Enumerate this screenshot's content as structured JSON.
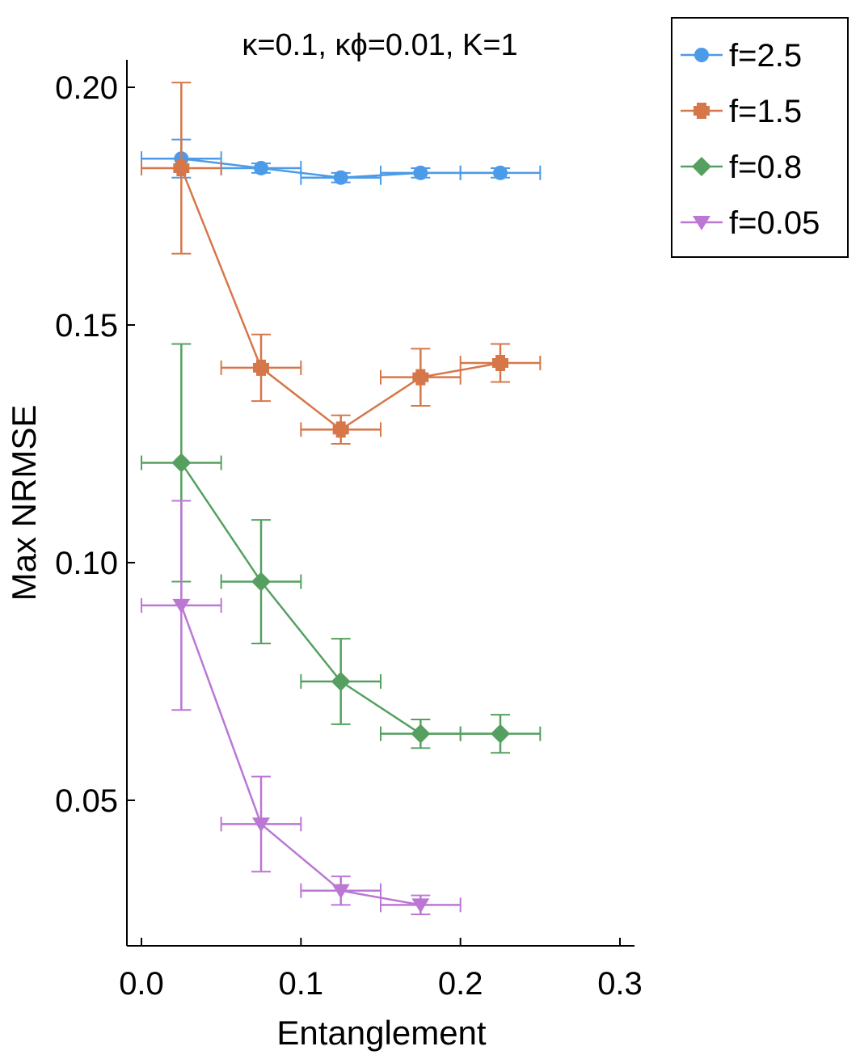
{
  "chart_data": {
    "type": "line",
    "title": "κ=0.1, κϕ=0.01, K=1",
    "xlabel": "Entanglement",
    "ylabel": "Max NRMSE",
    "xlim": [
      -0.01,
      0.31
    ],
    "ylim": [
      0.02,
      0.206
    ],
    "xticks": [
      0.0,
      0.1,
      0.2,
      0.3
    ],
    "xtick_labels": [
      "0.0",
      "0.1",
      "0.2",
      "0.3"
    ],
    "yticks": [
      0.05,
      0.1,
      0.15,
      0.2
    ],
    "ytick_labels": [
      "0.05",
      "0.10",
      "0.15",
      "0.20"
    ],
    "grid": false,
    "legend_position": "outside-top-right",
    "series": [
      {
        "name": "f=2.5",
        "label": "f=2.5",
        "color": "#4c9be8",
        "marker": "circle",
        "x": [
          0.025,
          0.075,
          0.125,
          0.175,
          0.225
        ],
        "y": [
          0.185,
          0.183,
          0.181,
          0.182,
          0.182
        ],
        "xerr": [
          0.025,
          0.025,
          0.025,
          0.025,
          0.025
        ],
        "yerr_low": [
          0.004,
          0.001,
          0.001,
          0.001,
          0.001
        ],
        "yerr_high": [
          0.004,
          0.001,
          0.001,
          0.001,
          0.001
        ]
      },
      {
        "name": "f=1.5",
        "label": "f=1.5",
        "color": "#d6774a",
        "marker": "cross",
        "x": [
          0.025,
          0.075,
          0.125,
          0.175,
          0.225
        ],
        "y": [
          0.183,
          0.141,
          0.128,
          0.139,
          0.142
        ],
        "xerr": [
          0.025,
          0.025,
          0.025,
          0.025,
          0.025
        ],
        "yerr_low": [
          0.018,
          0.007,
          0.003,
          0.006,
          0.004
        ],
        "yerr_high": [
          0.018,
          0.007,
          0.003,
          0.006,
          0.004
        ]
      },
      {
        "name": "f=0.8",
        "label": "f=0.8",
        "color": "#55a060",
        "marker": "diamond",
        "x": [
          0.025,
          0.075,
          0.125,
          0.175,
          0.225
        ],
        "y": [
          0.121,
          0.096,
          0.075,
          0.064,
          0.064
        ],
        "xerr": [
          0.025,
          0.025,
          0.025,
          0.025,
          0.025
        ],
        "yerr_low": [
          0.025,
          0.013,
          0.009,
          0.003,
          0.004
        ],
        "yerr_high": [
          0.025,
          0.013,
          0.009,
          0.003,
          0.004
        ]
      },
      {
        "name": "f=0.05",
        "label": "f=0.05",
        "color": "#bb77d4",
        "marker": "triangle-down",
        "x": [
          0.025,
          0.075,
          0.125,
          0.175
        ],
        "y": [
          0.091,
          0.045,
          0.031,
          0.028
        ],
        "xerr": [
          0.025,
          0.025,
          0.025,
          0.025
        ],
        "yerr_low": [
          0.022,
          0.01,
          0.003,
          0.002
        ],
        "yerr_high": [
          0.022,
          0.01,
          0.003,
          0.002
        ]
      }
    ]
  }
}
